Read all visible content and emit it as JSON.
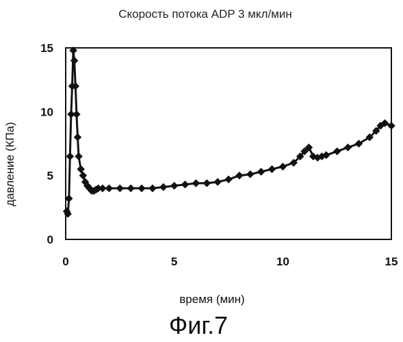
{
  "chart_data": {
    "type": "scatter",
    "title": "Скорость потока ADP 3 мкл/мин",
    "xlabel": "время (мин)",
    "ylabel": "давление (КПа)",
    "xlim": [
      0,
      15
    ],
    "ylim": [
      0,
      15
    ],
    "xticks": [
      "0",
      "5",
      "10",
      "15"
    ],
    "yticks": [
      "0",
      "5",
      "10",
      "15"
    ],
    "grid": false,
    "marker": "diamond",
    "series": [
      {
        "x": [
          0.05,
          0.1,
          0.15,
          0.2,
          0.25,
          0.3,
          0.35,
          0.4,
          0.45,
          0.5,
          0.55,
          0.6,
          0.7,
          0.8,
          0.9,
          1.0,
          1.1,
          1.2,
          1.3,
          1.4,
          1.5,
          1.7,
          2.0,
          2.5,
          3.0,
          3.5,
          4.0,
          4.5,
          5.0,
          5.5,
          6.0,
          6.5,
          7.0,
          7.5,
          8.0,
          8.5,
          9.0,
          9.5,
          10.0,
          10.5,
          10.8,
          11.0,
          11.2,
          11.4,
          11.6,
          11.8,
          12.0,
          12.5,
          13.0,
          13.5,
          14.0,
          14.3,
          14.5,
          14.7,
          15.0
        ],
        "y": [
          2.2,
          2.0,
          3.2,
          6.5,
          9.8,
          12.0,
          14.8,
          14.0,
          12.0,
          9.8,
          8.0,
          6.5,
          5.5,
          5.0,
          4.5,
          4.2,
          4.0,
          3.8,
          3.8,
          3.9,
          4.0,
          4.0,
          4.0,
          4.0,
          4.0,
          4.0,
          4.0,
          4.1,
          4.2,
          4.3,
          4.4,
          4.4,
          4.5,
          4.7,
          5.0,
          5.1,
          5.3,
          5.5,
          5.7,
          6.0,
          6.5,
          6.9,
          7.2,
          6.5,
          6.4,
          6.5,
          6.6,
          6.9,
          7.2,
          7.5,
          8.0,
          8.5,
          8.9,
          9.1,
          8.9
        ]
      }
    ]
  },
  "figure_caption": "Фиг.7"
}
